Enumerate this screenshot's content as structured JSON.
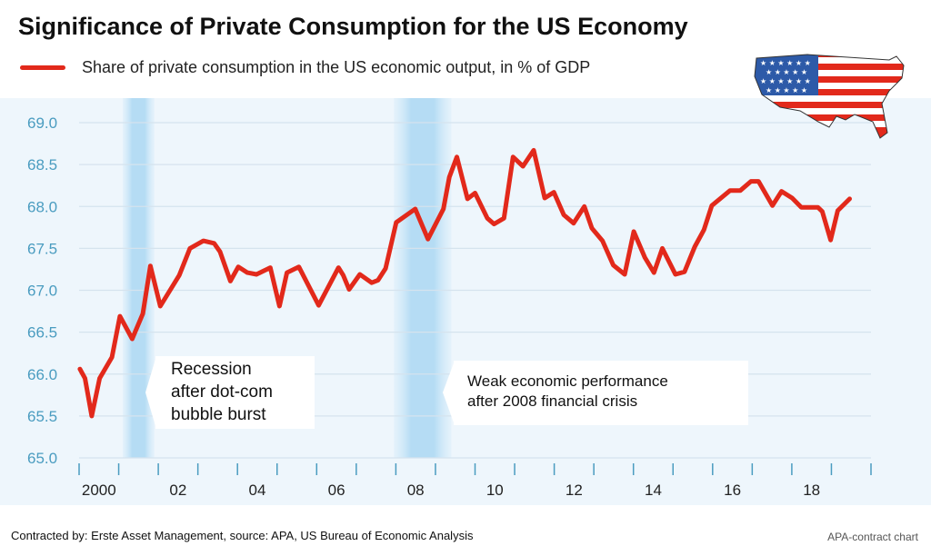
{
  "title": "Significance of Private Consumption for the US Economy",
  "footer": "Contracted by: Erste Asset Management, source: APA, US Bureau of Economic Analysis",
  "credit": "APA-contract chart",
  "colors": {
    "line": "#e2291b",
    "axis_labels": "#4a9cc0",
    "plot_background": "#eef6fc",
    "recession_band": "#b5dcf4"
  },
  "icons": {
    "map": "us-flag-map-icon"
  },
  "chart_data": {
    "type": "line",
    "title": "Significance of Private Consumption for the US Economy",
    "xlabel": "",
    "ylabel": "",
    "ylim": [
      65.0,
      69.0
    ],
    "xlim": [
      2000,
      2020
    ],
    "yticks": [
      "65.0",
      "65.5",
      "66.0",
      "66.5",
      "67.0",
      "67.5",
      "68.0",
      "68.5",
      "69.0"
    ],
    "xticks": [
      {
        "year": 2000,
        "label": "2000"
      },
      {
        "year": 2002,
        "label": "02"
      },
      {
        "year": 2004,
        "label": "04"
      },
      {
        "year": 2006,
        "label": "06"
      },
      {
        "year": 2008,
        "label": "08"
      },
      {
        "year": 2010,
        "label": "10"
      },
      {
        "year": 2012,
        "label": "12"
      },
      {
        "year": 2014,
        "label": "14"
      },
      {
        "year": 2016,
        "label": "16"
      },
      {
        "year": 2018,
        "label": "18"
      }
    ],
    "grid": true,
    "legend_position": "top-left",
    "series": [
      {
        "name": "Share of private consumption in the US economic output, in % of GDP",
        "x": [
          2000.02,
          2000.15,
          2000.32,
          2000.52,
          2000.83,
          2001.03,
          2001.34,
          2001.61,
          2001.8,
          2002.05,
          2002.53,
          2002.8,
          2003.14,
          2003.41,
          2003.56,
          2003.82,
          2004.02,
          2004.25,
          2004.48,
          2004.83,
          2005.06,
          2005.25,
          2005.55,
          2006.05,
          2006.55,
          2006.67,
          2006.82,
          2007.09,
          2007.39,
          2007.55,
          2007.74,
          2008.01,
          2008.49,
          2008.81,
          2009.2,
          2009.35,
          2009.54,
          2009.81,
          2010.0,
          2010.31,
          2010.48,
          2010.73,
          2010.96,
          2011.21,
          2011.48,
          2011.76,
          2011.99,
          2012.24,
          2012.49,
          2012.76,
          2012.95,
          2013.22,
          2013.49,
          2013.78,
          2014.01,
          2014.29,
          2014.52,
          2014.73,
          2015.06,
          2015.29,
          2015.55,
          2015.78,
          2015.98,
          2016.44,
          2016.7,
          2016.97,
          2017.16,
          2017.51,
          2017.74,
          2018.01,
          2018.24,
          2018.66,
          2018.77,
          2018.98,
          2019.16,
          2019.46
        ],
        "values": [
          66.06,
          65.95,
          65.5,
          65.95,
          66.2,
          66.69,
          66.42,
          66.72,
          67.29,
          66.81,
          67.18,
          67.5,
          67.59,
          67.56,
          67.46,
          67.11,
          67.28,
          67.21,
          67.19,
          67.27,
          66.81,
          67.21,
          67.28,
          66.82,
          67.27,
          67.18,
          67.01,
          67.19,
          67.09,
          67.12,
          67.26,
          67.81,
          67.97,
          67.61,
          67.97,
          68.35,
          68.59,
          68.09,
          68.16,
          67.86,
          67.79,
          67.86,
          68.59,
          68.48,
          68.67,
          68.1,
          68.17,
          67.9,
          67.8,
          68.0,
          67.74,
          67.59,
          67.3,
          67.19,
          67.7,
          67.39,
          67.21,
          67.5,
          67.19,
          67.22,
          67.52,
          67.72,
          68.01,
          68.19,
          68.19,
          68.3,
          68.3,
          68.01,
          68.18,
          68.1,
          67.99,
          67.99,
          67.94,
          67.6,
          67.95,
          68.09
        ]
      }
    ],
    "shaded_periods": [
      {
        "start": 2001.1,
        "end": 2001.9
      },
      {
        "start": 2007.95,
        "end": 2009.4
      }
    ],
    "annotations": [
      {
        "lines": [
          "Recession",
          "after dot-com",
          "bubble burst"
        ]
      },
      {
        "lines": [
          "Weak economic performance",
          "after 2008 financial crisis"
        ]
      }
    ]
  }
}
